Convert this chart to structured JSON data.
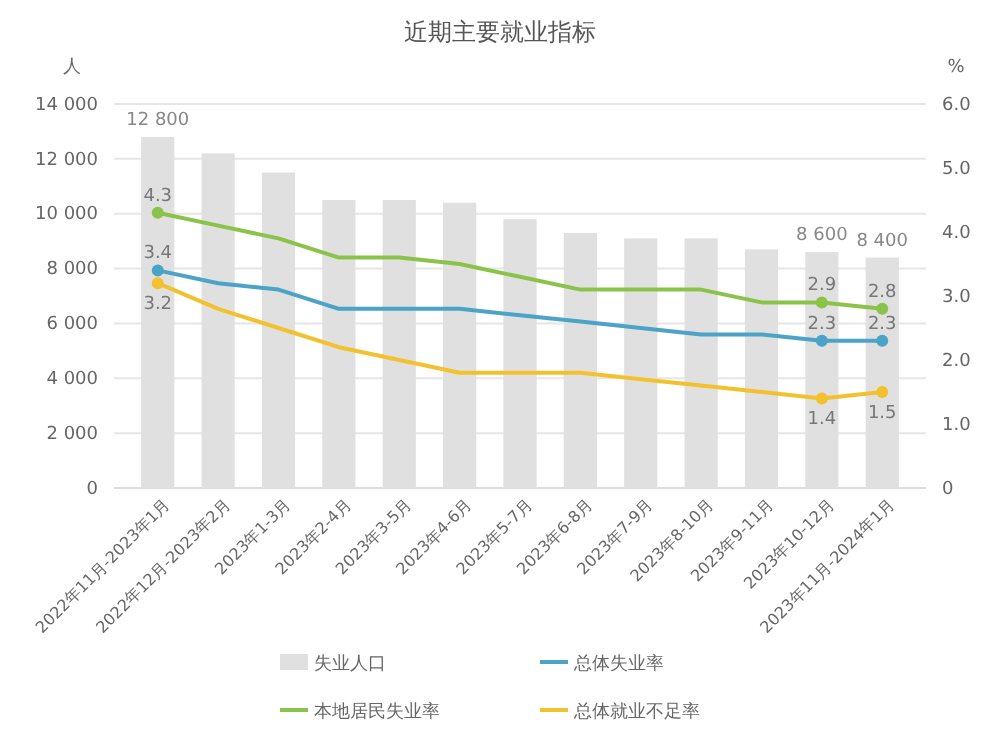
{
  "chart_data": {
    "type": "bar",
    "title": "近期主要就业指标",
    "ylabel": "人",
    "y2label": "%",
    "categories": [
      "2022年11月-2023年1月",
      "2022年12月-2023年2月",
      "2023年1-3月",
      "2023年2-4月",
      "2023年3-5月",
      "2023年4-6月",
      "2023年5-7月",
      "2023年6-8月",
      "2023年7-9月",
      "2023年8-10月",
      "2023年9-11月",
      "2023年10-12月",
      "2023年11月-2024年1月"
    ],
    "series": [
      {
        "name": "失业人口",
        "color": "#e0e0e0",
        "values": [
          12800,
          12200,
          11500,
          10500,
          10500,
          10400,
          9800,
          9300,
          9100,
          9100,
          8700,
          8600,
          8400
        ],
        "value_labels": [
          "12 800",
          null,
          null,
          null,
          null,
          null,
          null,
          null,
          null,
          null,
          null,
          "8 600",
          "8 400"
        ]
      },
      {
        "name": "总体失业率",
        "type": "line",
        "axis": "y2",
        "color": "#4ba3c7",
        "values": [
          3.4,
          3.2,
          3.1,
          2.8,
          2.8,
          2.8,
          2.7,
          2.6,
          2.5,
          2.4,
          2.4,
          2.3,
          2.3
        ],
        "value_labels": [
          "3.4",
          null,
          null,
          null,
          null,
          null,
          null,
          null,
          null,
          null,
          null,
          "2.3",
          "2.3"
        ]
      },
      {
        "name": "本地居民失业率",
        "type": "line",
        "axis": "y2",
        "color": "#8bc34a",
        "values": [
          4.3,
          4.1,
          3.9,
          3.6,
          3.6,
          3.5,
          3.3,
          3.1,
          3.1,
          3.1,
          2.9,
          2.9,
          2.8
        ],
        "value_labels": [
          "4.3",
          null,
          null,
          null,
          null,
          null,
          null,
          null,
          null,
          null,
          null,
          "2.9",
          "2.8"
        ]
      },
      {
        "name": "总体就业不足率",
        "type": "line",
        "axis": "y2",
        "color": "#f2c12e",
        "values": [
          3.2,
          2.8,
          2.5,
          2.2,
          2.0,
          1.8,
          1.8,
          1.8,
          1.7,
          1.6,
          1.5,
          1.4,
          1.5
        ],
        "value_labels": [
          "3.2",
          null,
          null,
          null,
          null,
          null,
          null,
          null,
          null,
          null,
          null,
          "1.4",
          "1.5"
        ]
      }
    ],
    "ylim": [
      0,
      14000
    ],
    "yticks": [
      0,
      {
        "value": 2000,
        "label": "2 000"
      },
      {
        "value": 4000,
        "label": "4 000"
      },
      {
        "value": 6000,
        "label": "6 000"
      },
      {
        "value": 8000,
        "label": "8 000"
      },
      {
        "value": 10000,
        "label": "10 000"
      },
      {
        "value": 12000,
        "label": "12 000"
      },
      {
        "value": 14000,
        "label": "14 000"
      }
    ],
    "y2lim": [
      0,
      6
    ],
    "y2ticks": [
      0,
      {
        "value": 1,
        "label": "1.0"
      },
      {
        "value": 2,
        "label": "2.0"
      },
      {
        "value": 3,
        "label": "3.0"
      },
      {
        "value": 4,
        "label": "4.0"
      },
      {
        "value": 5,
        "label": "5.0"
      },
      {
        "value": 6,
        "label": "6.0"
      }
    ],
    "grid": "y",
    "legend": "bottom",
    "line_style": "solid"
  }
}
